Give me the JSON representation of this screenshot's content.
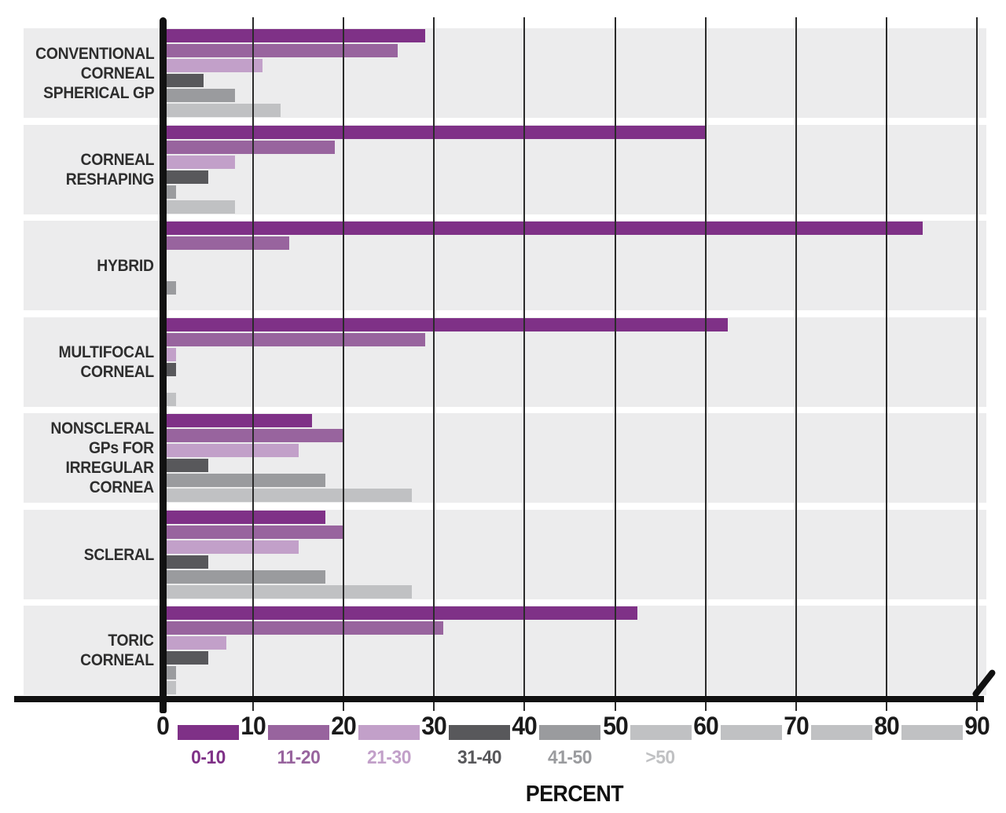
{
  "chart_data": {
    "type": "bar",
    "orientation": "horizontal",
    "title": "",
    "xlabel": "PERCENT",
    "ylabel": "",
    "x_ticks": [
      0,
      10,
      20,
      30,
      40,
      50,
      60,
      70,
      80,
      90
    ],
    "xlim": [
      0,
      91
    ],
    "grid": true,
    "legend_position": "bottom-axis",
    "band_bg": "#ECECED",
    "grid_color": "#2B2B2B",
    "axis_color": "#111111",
    "tick_label_color": "#1A1A1A",
    "category_label_color": "#2E2E2E",
    "categories": [
      {
        "name": "CONVENTIONAL CORNEAL SPHERICAL GP",
        "lines": [
          "CONVENTIONAL",
          "CORNEAL",
          "SPHERICAL GP"
        ]
      },
      {
        "name": "CORNEAL RESHAPING",
        "lines": [
          "CORNEAL",
          "RESHAPING"
        ]
      },
      {
        "name": "HYBRID",
        "lines": [
          "HYBRID"
        ]
      },
      {
        "name": "MULTIFOCAL CORNEAL",
        "lines": [
          "MULTIFOCAL",
          "CORNEAL"
        ]
      },
      {
        "name": "NONSCLERAL GPs FOR IRREGULAR CORNEA",
        "lines": [
          "NONSCLERAL",
          "GPs FOR",
          "IRREGULAR",
          "CORNEA"
        ]
      },
      {
        "name": "SCLERAL",
        "lines": [
          "SCLERAL"
        ]
      },
      {
        "name": "TORIC CORNEAL",
        "lines": [
          "TORIC",
          "CORNEAL"
        ]
      }
    ],
    "series": [
      {
        "name": "0-10",
        "color": "#7F3187",
        "values": [
          29,
          60,
          84,
          62.5,
          16.5,
          18,
          52.5
        ]
      },
      {
        "name": "11-20",
        "color": "#98649E",
        "values": [
          26,
          19,
          14,
          29,
          20,
          20,
          31
        ]
      },
      {
        "name": "21-30",
        "color": "#C2A0C9",
        "values": [
          11,
          8,
          0,
          1.5,
          15,
          15,
          7
        ]
      },
      {
        "name": "31-40",
        "color": "#58585B",
        "values": [
          4.5,
          5,
          0,
          1.5,
          5,
          5,
          5
        ]
      },
      {
        "name": "41-50",
        "color": "#9A9B9E",
        "values": [
          8,
          1.5,
          1.5,
          0,
          18,
          18,
          1.5
        ]
      },
      {
        "name": ">50",
        "color": "#C0C1C3",
        "values": [
          13,
          8,
          0,
          1.5,
          27.5,
          27.5,
          1.5
        ]
      }
    ]
  }
}
